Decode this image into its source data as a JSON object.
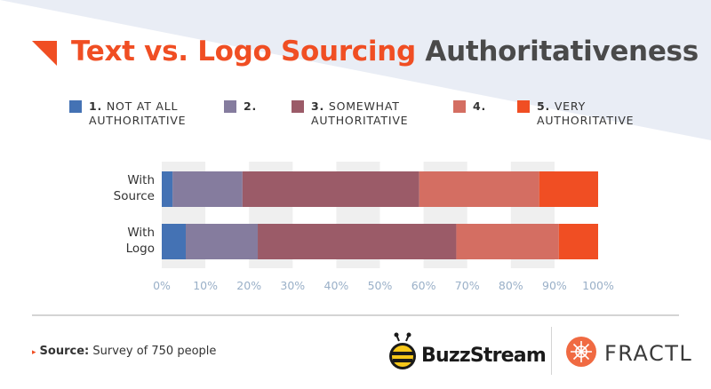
{
  "header": {
    "title_accent": "Text vs. Logo Sourcing",
    "title_rest": "Authoritativeness"
  },
  "legend": [
    {
      "number": "1.",
      "label": "NOT AT ALL AUTHORITATIVE",
      "line1": "NOT AT ALL",
      "line2": "AUTHORITATIVE",
      "color": "#4472b4"
    },
    {
      "number": "2.",
      "label": "",
      "line1": "",
      "line2": "",
      "color": "#857c9e"
    },
    {
      "number": "3.",
      "label": "SOMEWHAT AUTHORITATIVE",
      "line1": "SOMEWHAT",
      "line2": "AUTHORITATIVE",
      "color": "#9b5b68"
    },
    {
      "number": "4.",
      "label": "",
      "line1": "",
      "line2": "",
      "color": "#d46e62"
    },
    {
      "number": "5.",
      "label": "VERY AUTHORITATIVE",
      "line1": "VERY",
      "line2": "AUTHORITATIVE",
      "color": "#f04e23"
    }
  ],
  "chart_data": {
    "type": "bar",
    "orientation": "horizontal",
    "stacked": true,
    "categories": [
      "With Source",
      "With Logo"
    ],
    "category_lines": [
      [
        "With",
        "Source"
      ],
      [
        "With",
        "Logo"
      ]
    ],
    "series": [
      {
        "name": "1. NOT AT ALL AUTHORITATIVE",
        "values": [
          2.5,
          5.5
        ]
      },
      {
        "name": "2.",
        "values": [
          16,
          16.5
        ]
      },
      {
        "name": "3. SOMEWHAT AUTHORITATIVE",
        "values": [
          40.5,
          45.5
        ]
      },
      {
        "name": "4.",
        "values": [
          27.5,
          23.5
        ]
      },
      {
        "name": "5. VERY AUTHORITATIVE",
        "values": [
          13.5,
          9
        ]
      }
    ],
    "colors": [
      "#4472b4",
      "#857c9e",
      "#9b5b68",
      "#d46e62",
      "#f04e23"
    ],
    "xlim": [
      0,
      100
    ],
    "xticks": [
      "0%",
      "10%",
      "20%",
      "30%",
      "40%",
      "50%",
      "60%",
      "70%",
      "80%",
      "90%",
      "100%"
    ],
    "grid": "alternating vertical bands",
    "legend_position": "top",
    "xlabel": "",
    "ylabel": ""
  },
  "footer": {
    "source_label": "Source:",
    "source_text": "Survey of 750 people",
    "arrow": "▸",
    "logos": {
      "buzzstream": {
        "text": "BuzzStream",
        "icon": "bee-icon"
      },
      "fractl": {
        "text": "FRACTL",
        "icon": "fractl-burst-icon"
      }
    }
  },
  "colors": {
    "accent": "#f04e23",
    "title_dark": "#4a4a4a",
    "background_shape": "#e9edf5",
    "grid_band": "#efefef",
    "tick_label": "#9ab0c8"
  }
}
